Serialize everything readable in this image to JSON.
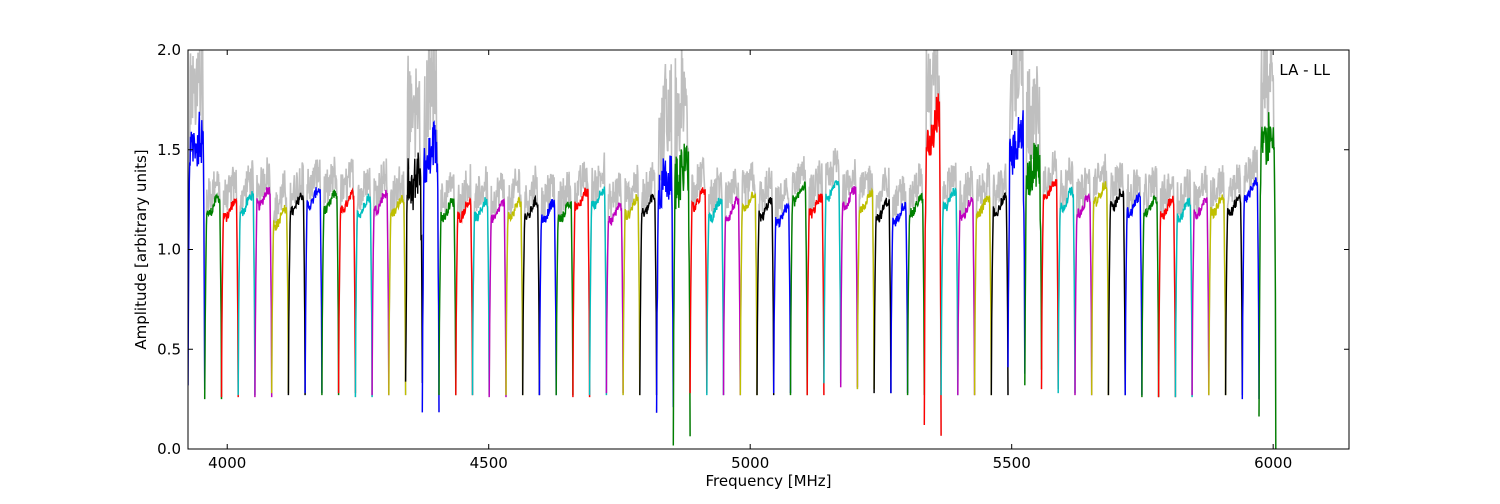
{
  "chart_data": {
    "type": "line",
    "annotation": "LA - LL",
    "xlabel": "Frequency [MHz]",
    "ylabel": "Amplitude [arbitrary units]",
    "xlim": [
      3925,
      6145
    ],
    "ylim": [
      0.0,
      2.0
    ],
    "x_ticks": [
      4000,
      4500,
      5000,
      5500,
      6000
    ],
    "y_ticks": [
      0.0,
      0.5,
      1.0,
      1.5,
      2.0
    ],
    "x_tick_labels": [
      "4000",
      "4500",
      "5000",
      "5500",
      "6000"
    ],
    "y_tick_labels": [
      "0.0",
      "0.5",
      "1.0",
      "1.5",
      "2.0"
    ],
    "grid": false,
    "raw_color": "#bfbfbf",
    "channel_colors": [
      "#0000ff",
      "#008000",
      "#ff0000",
      "#00bfbf",
      "#bf00bf",
      "#bfbf00",
      "#000000"
    ],
    "channel_width_mhz": 32,
    "channel_start_mhz": 3925,
    "channels": [
      {
        "plateau": 1.52,
        "min": 0.28
      },
      {
        "plateau": 1.22,
        "min": 0.25
      },
      {
        "plateau": 1.2,
        "min": 0.26
      },
      {
        "plateau": 1.23,
        "min": 0.27
      },
      {
        "plateau": 1.26,
        "min": 0.26
      },
      {
        "plateau": 1.16,
        "min": 0.28
      },
      {
        "plateau": 1.23,
        "min": 0.27
      },
      {
        "plateau": 1.26,
        "min": 0.28
      },
      {
        "plateau": 1.24,
        "min": 0.27
      },
      {
        "plateau": 1.24,
        "min": 0.28
      },
      {
        "plateau": 1.22,
        "min": 0.26
      },
      {
        "plateau": 1.24,
        "min": 0.27
      },
      {
        "plateau": 1.22,
        "min": 0.27
      },
      {
        "plateau": 1.35,
        "min": 0.25
      },
      {
        "plateau": 1.48,
        "min": 0.08
      },
      {
        "plateau": 1.2,
        "min": 0.27
      },
      {
        "plateau": 1.2,
        "min": 0.27
      },
      {
        "plateau": 1.2,
        "min": 0.27
      },
      {
        "plateau": 1.19,
        "min": 0.26
      },
      {
        "plateau": 1.2,
        "min": 0.27
      },
      {
        "plateau": 1.2,
        "min": 0.27
      },
      {
        "plateau": 1.19,
        "min": 0.27
      },
      {
        "plateau": 1.19,
        "min": 0.27
      },
      {
        "plateau": 1.25,
        "min": 0.26
      },
      {
        "plateau": 1.26,
        "min": 0.27
      },
      {
        "plateau": 1.18,
        "min": 0.28
      },
      {
        "plateau": 1.21,
        "min": 0.27
      },
      {
        "plateau": 1.22,
        "min": 0.27
      },
      {
        "plateau": 1.35,
        "min": 0.1
      },
      {
        "plateau": 1.38,
        "min": 0.09
      },
      {
        "plateau": 1.25,
        "min": 0.28
      },
      {
        "plateau": 1.2,
        "min": 0.27
      },
      {
        "plateau": 1.2,
        "min": 0.27
      },
      {
        "plateau": 1.24,
        "min": 0.27
      },
      {
        "plateau": 1.2,
        "min": 0.27
      },
      {
        "plateau": 1.17,
        "min": 0.28
      },
      {
        "plateau": 1.28,
        "min": 0.27
      },
      {
        "plateau": 1.22,
        "min": 0.27
      },
      {
        "plateau": 1.3,
        "min": 0.33
      },
      {
        "plateau": 1.26,
        "min": 0.31
      },
      {
        "plateau": 1.24,
        "min": 0.3
      },
      {
        "plateau": 1.2,
        "min": 0.28
      },
      {
        "plateau": 1.18,
        "min": 0.28
      },
      {
        "plateau": 1.22,
        "min": 0.27
      },
      {
        "plateau": 1.6,
        "min": 0.1
      },
      {
        "plateau": 1.25,
        "min": 0.27
      },
      {
        "plateau": 1.2,
        "min": 0.27
      },
      {
        "plateau": 1.22,
        "min": 0.27
      },
      {
        "plateau": 1.22,
        "min": 0.27
      },
      {
        "plateau": 1.55,
        "min": 0.35
      },
      {
        "plateau": 1.4,
        "min": 0.32
      },
      {
        "plateau": 1.3,
        "min": 0.3
      },
      {
        "plateau": 1.25,
        "min": 0.28
      },
      {
        "plateau": 1.22,
        "min": 0.27
      },
      {
        "plateau": 1.28,
        "min": 0.27
      },
      {
        "plateau": 1.25,
        "min": 0.27
      },
      {
        "plateau": 1.22,
        "min": 0.27
      },
      {
        "plateau": 1.22,
        "min": 0.26
      },
      {
        "plateau": 1.21,
        "min": 0.26
      },
      {
        "plateau": 1.2,
        "min": 0.26
      },
      {
        "plateau": 1.21,
        "min": 0.27
      },
      {
        "plateau": 1.22,
        "min": 0.27
      },
      {
        "plateau": 1.22,
        "min": 0.27
      },
      {
        "plateau": 1.3,
        "min": 0.25
      },
      {
        "plateau": 1.55,
        "min": 0.12
      }
    ]
  }
}
